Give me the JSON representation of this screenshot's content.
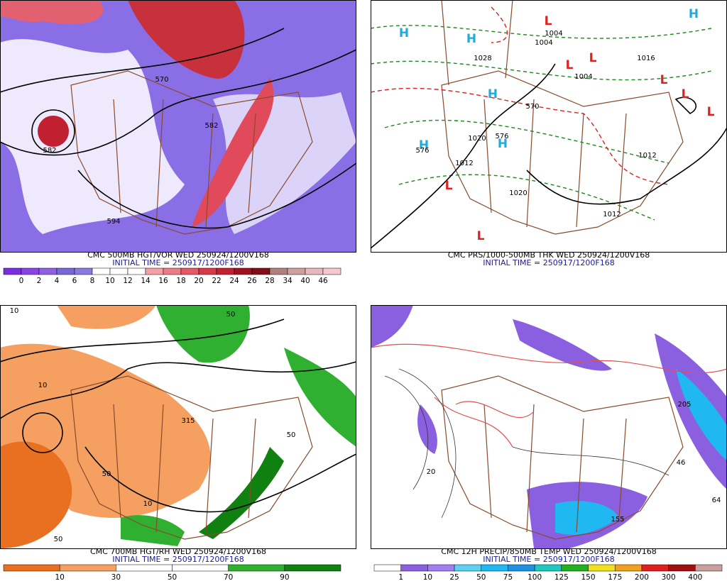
{
  "panels": [
    {
      "caption": "CMC 500MB HGT/VOR WED 250924/1200V168",
      "initial_time": "INITIAL TIME = 250917/1200F168",
      "colorbar": {
        "labels": [
          0,
          2,
          4,
          6,
          8,
          10,
          12,
          14,
          16,
          18,
          20,
          22,
          24,
          26,
          28,
          34,
          40,
          46
        ],
        "colors": [
          "#7a2ee0",
          "#8a44e6",
          "#9060e0",
          "#7a66d8",
          "#8a7ae0",
          "#ffffff",
          "#ffffff",
          "#ffffff",
          "#f5a0a8",
          "#ee7c88",
          "#e65a68",
          "#d83848",
          "#c02030",
          "#a01020",
          "#801018",
          "#b08080",
          "#d0a0a0",
          "#e8b8c0",
          "#f4c8d0"
        ]
      },
      "map_labels": [
        "570",
        "582",
        "582",
        "594"
      ]
    },
    {
      "caption": "CMC PRS/1000-500MB THK WED 250924/1200V168",
      "initial_time": "INITIAL TIME = 250917/1200F168",
      "map_labels": [
        "H",
        "H",
        "H",
        "H",
        "H",
        "H",
        "L",
        "L",
        "L",
        "L",
        "L",
        "L",
        "L",
        "L",
        "1004",
        "1004",
        "1004",
        "1028",
        "1020",
        "1012",
        "1020",
        "1012",
        "1012",
        "576",
        "570",
        "576",
        "1016"
      ]
    },
    {
      "caption": "CMC 700MB HGT/RH WED 250924/1200V168",
      "initial_time": "INITIAL TIME = 250917/1200F168",
      "colorbar": {
        "labels": [
          10,
          30,
          50,
          70,
          90
        ],
        "colors": [
          "#e87020",
          "#f5a060",
          "#ffffff",
          "#ffffff",
          "#30b030",
          "#108010"
        ]
      },
      "map_labels": [
        "10",
        "50",
        "315",
        "10",
        "50",
        "50",
        "10",
        "50"
      ]
    },
    {
      "caption": "CMC 12H PRECIP/850MB TEMP WED 250924/1200V168",
      "initial_time": "INITIAL TIME = 250917/1200F168",
      "colorbar": {
        "labels": [
          1,
          10,
          25,
          50,
          75,
          100,
          125,
          150,
          175,
          200,
          300,
          400
        ],
        "colors": [
          "#ffffff",
          "#8a60e0",
          "#a080f0",
          "#60d0f0",
          "#20b8f0",
          "#2090e0",
          "#20c8c0",
          "#20b020",
          "#f0e020",
          "#f0a020",
          "#e02020",
          "#a01010",
          "#c8a0a0"
        ]
      },
      "map_labels": [
        "20",
        "205",
        "46",
        "64",
        "155"
      ]
    }
  ]
}
